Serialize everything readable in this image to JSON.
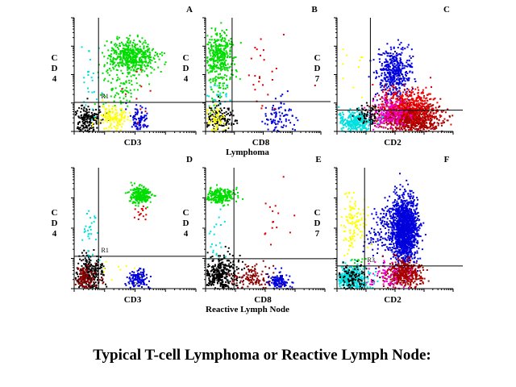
{
  "title": "Typical T-cell Lymphoma or Reactive Lymph Node:",
  "row_labels": [
    "Lymphoma",
    "Reactive Lymph Node"
  ],
  "chart_data": [
    {
      "type": "scatter",
      "letter": "A",
      "xlabel": "CD3",
      "ylabel": "CD4",
      "region": "R1",
      "xlim": [
        0,
        4
      ],
      "ylim": [
        0,
        4
      ],
      "quadrant": [
        0.8,
        1.02
      ],
      "clusters": [
        {
          "color": "#00dd00",
          "x": 1.85,
          "y": 2.65,
          "sx": 0.4,
          "sy": 0.3,
          "n": 500
        },
        {
          "color": "#00dd00",
          "x": 1.4,
          "y": 1.6,
          "sx": 0.3,
          "sy": 0.4,
          "n": 80
        },
        {
          "color": "#000000",
          "x": 0.4,
          "y": 0.45,
          "sx": 0.22,
          "sy": 0.25,
          "n": 180
        },
        {
          "color": "#ffff00",
          "x": 1.25,
          "y": 0.5,
          "sx": 0.25,
          "sy": 0.25,
          "n": 130
        },
        {
          "color": "#0000dd",
          "x": 2.1,
          "y": 0.45,
          "sx": 0.15,
          "sy": 0.25,
          "n": 90
        },
        {
          "color": "#00e0e0",
          "x": 0.55,
          "y": 1.6,
          "sx": 0.2,
          "sy": 0.7,
          "n": 25
        },
        {
          "color": "#dd0000",
          "x": 2.2,
          "y": 1.4,
          "sx": 0.3,
          "sy": 0.4,
          "n": 10
        }
      ]
    },
    {
      "type": "scatter",
      "letter": "B",
      "xlabel": "CD8",
      "ylabel": "CD4",
      "xlim": [
        0,
        4
      ],
      "ylim": [
        0,
        4
      ],
      "quadrant": [
        0.92,
        1.05
      ],
      "clusters": [
        {
          "color": "#00dd00",
          "x": 0.45,
          "y": 2.7,
          "sx": 0.28,
          "sy": 0.4,
          "n": 350
        },
        {
          "color": "#00dd00",
          "x": 0.4,
          "y": 1.6,
          "sx": 0.25,
          "sy": 0.4,
          "n": 50
        },
        {
          "color": "#00e0e0",
          "x": 0.4,
          "y": 1.3,
          "sx": 0.2,
          "sy": 0.2,
          "n": 20
        },
        {
          "color": "#000000",
          "x": 0.4,
          "y": 0.5,
          "sx": 0.25,
          "sy": 0.25,
          "n": 150
        },
        {
          "color": "#ffff00",
          "x": 0.3,
          "y": 0.4,
          "sx": 0.2,
          "sy": 0.25,
          "n": 70
        },
        {
          "color": "#0000dd",
          "x": 2.5,
          "y": 0.45,
          "sx": 0.25,
          "sy": 0.3,
          "n": 90
        },
        {
          "color": "#dd0000",
          "x": 2.0,
          "y": 2.0,
          "sx": 0.5,
          "sy": 0.6,
          "n": 25
        }
      ]
    },
    {
      "type": "scatter",
      "letter": "C",
      "xlabel": "CD2",
      "ylabel": "CD7",
      "xlim": [
        0,
        4
      ],
      "ylim": [
        0,
        4
      ],
      "quadrant": [
        1.15,
        0.75
      ],
      "clusters": [
        {
          "color": "#0000dd",
          "x": 1.95,
          "y": 2.1,
          "sx": 0.3,
          "sy": 0.4,
          "n": 450
        },
        {
          "color": "#aa0000",
          "x": 2.5,
          "y": 0.5,
          "sx": 0.5,
          "sy": 0.25,
          "n": 900
        },
        {
          "color": "#ee0000",
          "x": 2.4,
          "y": 1.0,
          "sx": 0.5,
          "sy": 0.3,
          "n": 350
        },
        {
          "color": "#ee00cc",
          "x": 1.7,
          "y": 0.6,
          "sx": 0.35,
          "sy": 0.25,
          "n": 200
        },
        {
          "color": "#00e0e0",
          "x": 0.6,
          "y": 0.35,
          "sx": 0.3,
          "sy": 0.2,
          "n": 300
        },
        {
          "color": "#000000",
          "x": 1.0,
          "y": 0.6,
          "sx": 0.2,
          "sy": 0.2,
          "n": 60
        },
        {
          "color": "#ffff00",
          "x": 0.6,
          "y": 2.2,
          "sx": 0.4,
          "sy": 0.7,
          "n": 10
        }
      ]
    },
    {
      "type": "scatter",
      "letter": "D",
      "xlabel": "CD3",
      "ylabel": "CD4",
      "region": "R1",
      "xlim": [
        0,
        4
      ],
      "ylim": [
        0,
        4
      ],
      "quadrant": [
        0.8,
        1.07
      ],
      "clusters": [
        {
          "color": "#00dd00",
          "x": 2.15,
          "y": 3.1,
          "sx": 0.18,
          "sy": 0.15,
          "n": 250
        },
        {
          "color": "#dd0000",
          "x": 2.15,
          "y": 2.6,
          "sx": 0.1,
          "sy": 0.2,
          "n": 15
        },
        {
          "color": "#000000",
          "x": 0.45,
          "y": 0.55,
          "sx": 0.25,
          "sy": 0.3,
          "n": 250
        },
        {
          "color": "#880000",
          "x": 0.35,
          "y": 0.35,
          "sx": 0.2,
          "sy": 0.2,
          "n": 150
        },
        {
          "color": "#0000dd",
          "x": 2.05,
          "y": 0.35,
          "sx": 0.18,
          "sy": 0.18,
          "n": 120
        },
        {
          "color": "#00e0e0",
          "x": 0.5,
          "y": 1.9,
          "sx": 0.15,
          "sy": 0.5,
          "n": 30
        },
        {
          "color": "#ffff00",
          "x": 1.5,
          "y": 0.7,
          "sx": 0.5,
          "sy": 0.3,
          "n": 10
        }
      ]
    },
    {
      "type": "scatter",
      "letter": "E",
      "xlabel": "CD8",
      "ylabel": "CD4",
      "xlim": [
        0,
        4
      ],
      "ylim": [
        0,
        4
      ],
      "quadrant": [
        0.95,
        0.99
      ],
      "clusters": [
        {
          "color": "#00dd00",
          "x": 0.45,
          "y": 3.1,
          "sx": 0.3,
          "sy": 0.12,
          "n": 250
        },
        {
          "color": "#000000",
          "x": 0.45,
          "y": 0.5,
          "sx": 0.3,
          "sy": 0.3,
          "n": 350
        },
        {
          "color": "#880000",
          "x": 1.6,
          "y": 0.4,
          "sx": 0.35,
          "sy": 0.2,
          "n": 120
        },
        {
          "color": "#0000dd",
          "x": 2.45,
          "y": 0.25,
          "sx": 0.2,
          "sy": 0.15,
          "n": 120
        },
        {
          "color": "#00e0e0",
          "x": 0.3,
          "y": 1.8,
          "sx": 0.2,
          "sy": 0.5,
          "n": 25
        },
        {
          "color": "#dd0000",
          "x": 2.35,
          "y": 2.5,
          "sx": 0.3,
          "sy": 0.5,
          "n": 15
        }
      ]
    },
    {
      "type": "scatter",
      "letter": "F",
      "xlabel": "CD2",
      "ylabel": "CD7",
      "region": "R3",
      "xlim": [
        0,
        4
      ],
      "ylim": [
        0,
        4
      ],
      "quadrant": [
        0.95,
        0.75
      ],
      "clusters": [
        {
          "color": "#0000dd",
          "x": 2.3,
          "y": 2.0,
          "sx": 0.22,
          "sy": 0.55,
          "n": 1400
        },
        {
          "color": "#0000dd",
          "x": 1.6,
          "y": 1.9,
          "sx": 0.3,
          "sy": 0.5,
          "n": 150
        },
        {
          "color": "#aa0000",
          "x": 2.3,
          "y": 0.5,
          "sx": 0.3,
          "sy": 0.22,
          "n": 400
        },
        {
          "color": "#ee00cc",
          "x": 1.6,
          "y": 0.4,
          "sx": 0.4,
          "sy": 0.25,
          "n": 80
        },
        {
          "color": "#00e0e0",
          "x": 0.45,
          "y": 0.35,
          "sx": 0.28,
          "sy": 0.22,
          "n": 400
        },
        {
          "color": "#000000",
          "x": 0.55,
          "y": 0.4,
          "sx": 0.25,
          "sy": 0.2,
          "n": 100
        },
        {
          "color": "#ffff00",
          "x": 0.5,
          "y": 2.2,
          "sx": 0.25,
          "sy": 0.5,
          "n": 120
        },
        {
          "color": "#00dd00",
          "x": 0.6,
          "y": 0.95,
          "sx": 0.2,
          "sy": 0.1,
          "n": 10
        }
      ]
    }
  ]
}
